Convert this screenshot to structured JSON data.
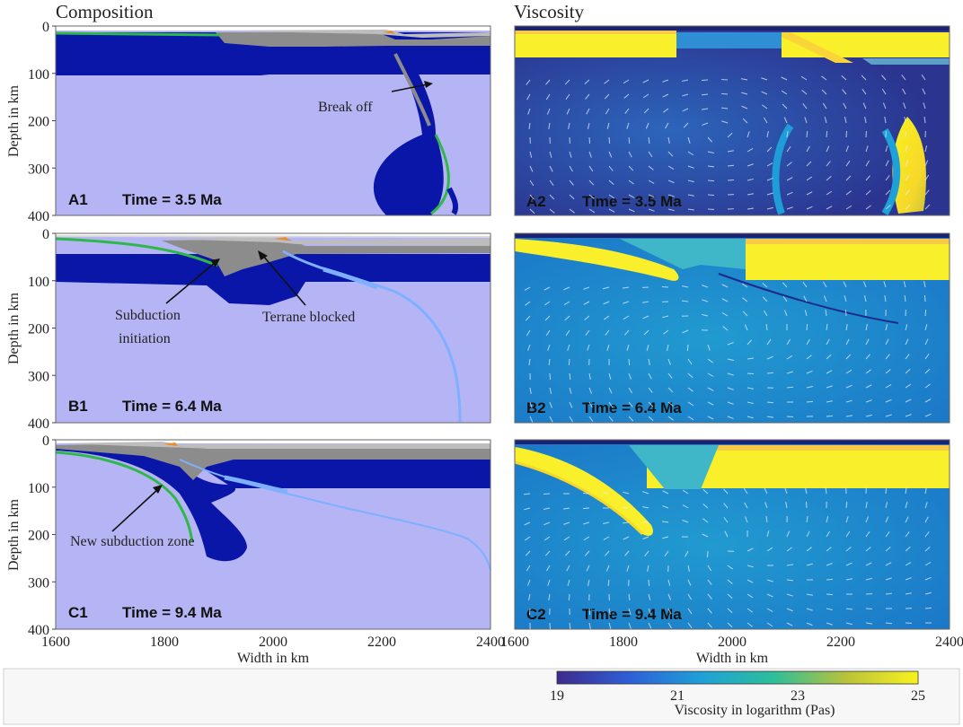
{
  "titles": {
    "composition": "Composition",
    "viscosity": "Viscosity"
  },
  "axes": {
    "ylabel": "Depth in km",
    "xlabel": "Width in km",
    "y_ticks": [
      "0",
      "100",
      "200",
      "300",
      "400"
    ],
    "x_ticks": [
      "1600",
      "1800",
      "2000",
      "2200",
      "2400"
    ]
  },
  "panels": {
    "A1": {
      "label": "A1",
      "time": "Time = 3.5 Ma"
    },
    "B1": {
      "label": "B1",
      "time": "Time = 6.4 Ma"
    },
    "C1": {
      "label": "C1",
      "time": "Time = 9.4 Ma"
    },
    "A2": {
      "label": "A2",
      "time": "Time = 3.5 Ma"
    },
    "B2": {
      "label": "B2",
      "time": "Time = 6.4 Ma"
    },
    "C2": {
      "label": "C2",
      "time": "Time = 9.4 Ma"
    }
  },
  "annotations": {
    "break_off": "Break off",
    "subduction_initiation_1": "Subduction",
    "subduction_initiation_2": "initiation",
    "terrane_blocked": "Terrane blocked",
    "new_subduction_zone": "New subduction zone"
  },
  "colorbar": {
    "label": "Viscosity in logarithm (Pas)",
    "ticks": [
      "19",
      "21",
      "23",
      "25"
    ]
  },
  "colors": {
    "mantle": "#b5b5f5",
    "lithosphere": "#0a16a8",
    "crust_gray": "#8c8c8c",
    "crust_light": "#bdbdbd",
    "green_layer": "#2fb84a",
    "orange": "#f08a24",
    "weak_zone": "#7fb0ff",
    "visc_low": "#2b3a8f",
    "visc_mid": "#1b8fd6",
    "visc_high": "#f6e620"
  }
}
